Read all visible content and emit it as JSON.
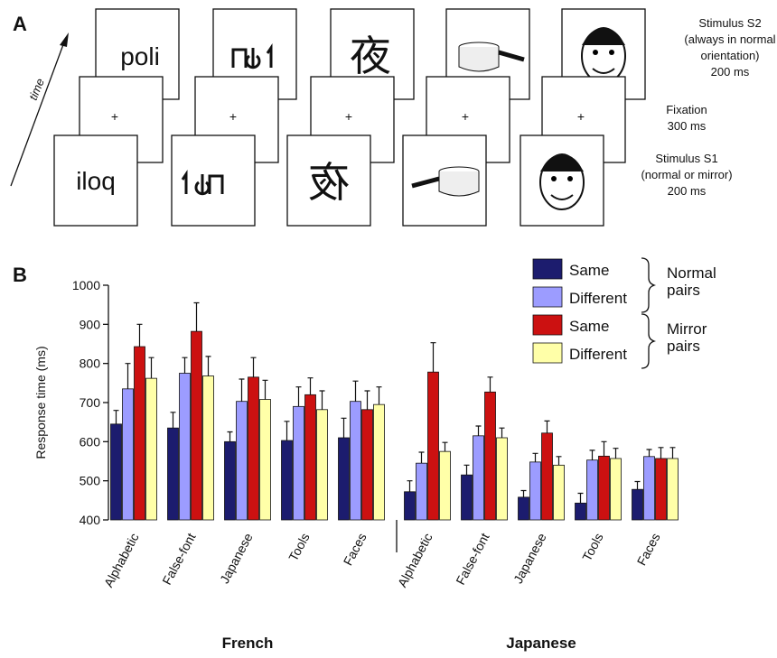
{
  "panel_a": {
    "label": "A",
    "time_label": "time",
    "word_s2": "poli",
    "word_s1": "iloq",
    "kanji": "夜",
    "fixation": "+",
    "s2_lines": [
      "Stimulus S2",
      "(always in normal",
      "orientation)",
      "200 ms"
    ],
    "fixation_lines": [
      "Fixation",
      "300 ms"
    ],
    "s1_lines": [
      "Stimulus S1",
      "(normal or mirror)",
      "200 ms"
    ]
  },
  "chart_data": {
    "type": "bar",
    "panel_label": "B",
    "y_label": "Response time (ms)",
    "categories": [
      "Alphabetic",
      "False-font",
      "Japanese",
      "Tools",
      "Faces",
      "Alphabetic",
      "False-font",
      "Japanese",
      "Tools",
      "Faces"
    ],
    "groups": [
      "French",
      "Japanese"
    ],
    "ylim": [
      400,
      1000
    ],
    "yticks": [
      400,
      500,
      600,
      700,
      800,
      900,
      1000
    ],
    "series": [
      {
        "name": "Same",
        "color": "#1c1c6e",
        "values": [
          645,
          635,
          600,
          603,
          610,
          472,
          515,
          458,
          443,
          478
        ],
        "errors": [
          35,
          40,
          25,
          49,
          50,
          28,
          25,
          17,
          25,
          20
        ]
      },
      {
        "name": "Different",
        "color": "#9c9cff",
        "values": [
          735,
          775,
          703,
          690,
          703,
          545,
          615,
          548,
          553,
          562
        ],
        "errors": [
          65,
          40,
          57,
          50,
          52,
          28,
          25,
          22,
          25,
          18
        ]
      },
      {
        "name": "Same",
        "color": "#cc1111",
        "values": [
          843,
          882,
          765,
          720,
          682,
          778,
          727,
          622,
          563,
          557
        ],
        "errors": [
          57,
          73,
          50,
          43,
          48,
          75,
          38,
          31,
          37,
          28
        ]
      },
      {
        "name": "Different",
        "color": "#ffffa8",
        "values": [
          762,
          768,
          708,
          682,
          695,
          575,
          610,
          540,
          557,
          557
        ],
        "errors": [
          53,
          50,
          49,
          48,
          45,
          23,
          25,
          22,
          26,
          28
        ]
      }
    ],
    "legend_groups": [
      [
        "Normal",
        "pairs"
      ],
      [
        "Mirror",
        "pairs"
      ]
    ]
  }
}
